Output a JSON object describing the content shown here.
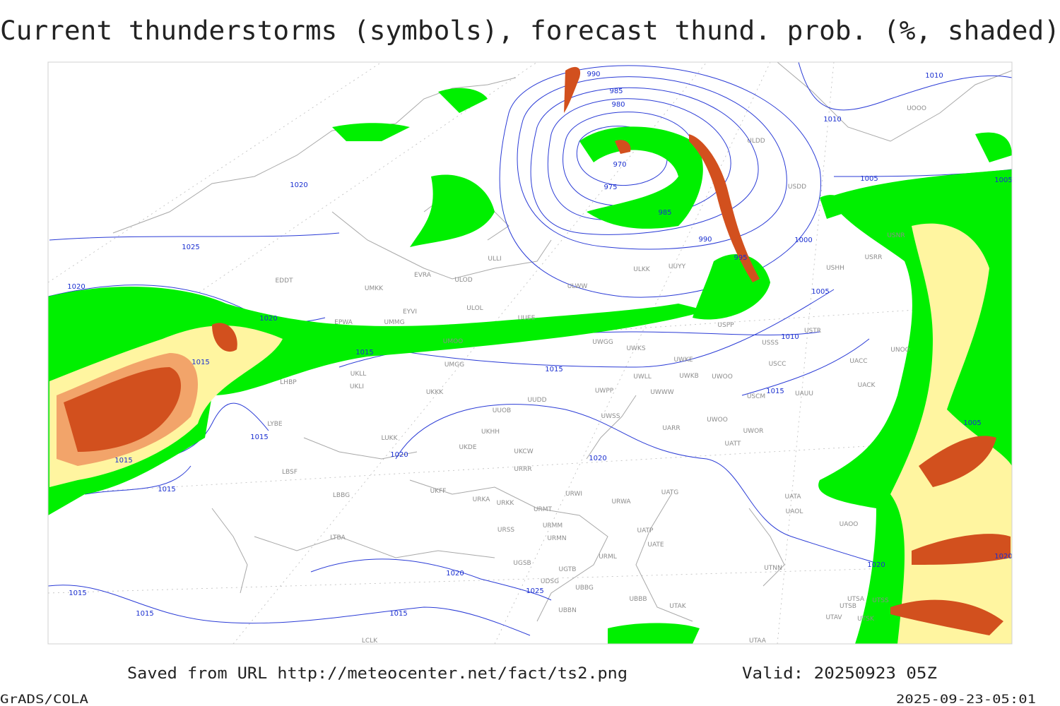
{
  "header": {
    "title": "Current thunderstorms (symbols), forecast thund. prob. (%, shaded)"
  },
  "isobar_labels": [
    990,
    985,
    980,
    970,
    975,
    985,
    990,
    995,
    1000,
    1005,
    1010,
    1015,
    1015,
    1020,
    1020,
    1020,
    1025,
    1015,
    1015,
    1015,
    1015,
    1015,
    1015,
    1015,
    1015,
    1020,
    1020,
    1025,
    1020,
    1010,
    1010,
    1005,
    1005,
    1005,
    1020,
    1020
  ],
  "stations": [
    "EDDT",
    "EPWA",
    "UMKK",
    "EYVI",
    "UMMG",
    "ULOL",
    "ULOD",
    "EVRA",
    "ULLI",
    "UUEE",
    "ULWW",
    "ULKK",
    "UUYY",
    "ULDD",
    "USDD",
    "USHH",
    "USPP",
    "USTR",
    "USSS",
    "USCC",
    "USCM",
    "UAUU",
    "UWGG",
    "UWKS",
    "UWKE",
    "UWKB",
    "UWOO",
    "UWLL",
    "UWWW",
    "UWPP",
    "UWSS",
    "UARR",
    "UWOO",
    "UWOR",
    "UATT",
    "UUOB",
    "UUDD",
    "UKKK",
    "UKLL",
    "UKLI",
    "LHBP",
    "LYBE",
    "LUKK",
    "UKDE",
    "UKCW",
    "UKHH",
    "URRR",
    "UKFF",
    "URKA",
    "URKK",
    "URMT",
    "URWI",
    "URWA",
    "UATG",
    "URSS",
    "URMM",
    "URMN",
    "UATP",
    "UATE",
    "URML",
    "UGSB",
    "UGTB",
    "UDSG",
    "UBBG",
    "UBBN",
    "UBBB",
    "UTAK",
    "UTNN",
    "UAOL",
    "UATA",
    "UAOO",
    "UACC",
    "UACK",
    "UNOO",
    "USNR",
    "USRR",
    "UOOO",
    "UTSA",
    "UTSB",
    "UTSS",
    "UTAV",
    "UTSK",
    "UTAA",
    "LBSF",
    "LBBG",
    "LTBA",
    "LCLK",
    "UMOO",
    "UMGG"
  ],
  "footer": {
    "source": "Saved from URL http://meteocenter.net/fact/ts2.png",
    "valid": "Valid: 20250923 05Z",
    "credit": "GrADS/COLA",
    "timestamp": "2025-09-23-05:01"
  }
}
